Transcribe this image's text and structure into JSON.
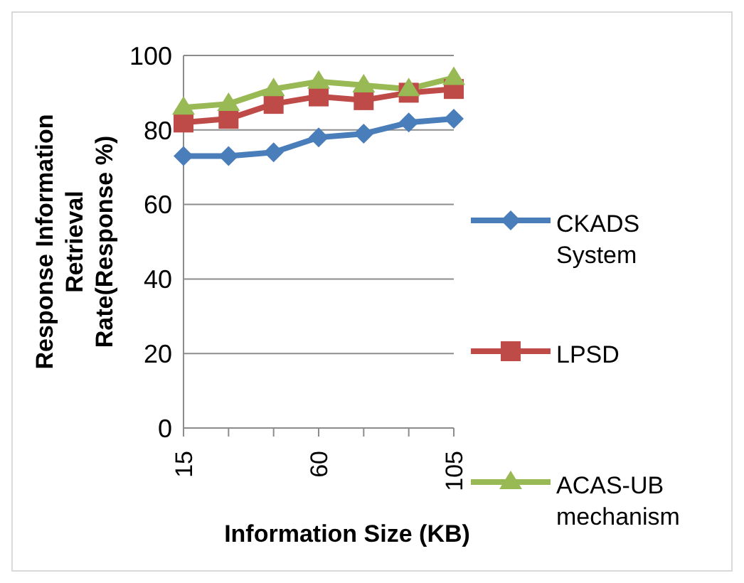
{
  "chart_data": {
    "type": "line",
    "xlabel": "Information Size (KB)",
    "ylabel": "Response Information Retrieval Rate(Response %)",
    "categories": [
      "15",
      null,
      null,
      "60",
      null,
      null,
      "105"
    ],
    "series": [
      {
        "name": "CKADS System",
        "color": "#4a7ebb",
        "marker": "diamond",
        "values": [
          73,
          73,
          74,
          78,
          79,
          82,
          83
        ]
      },
      {
        "name": "LPSD",
        "color": "#be4b48",
        "marker": "square",
        "values": [
          82,
          83,
          87,
          89,
          88,
          90,
          91
        ]
      },
      {
        "name": "ACAS-UB mechanism",
        "color": "#98b954",
        "marker": "triangle",
        "values": [
          86,
          87,
          91,
          93,
          92,
          91,
          94
        ]
      }
    ],
    "ylim": [
      0,
      100
    ],
    "yticks": [
      0,
      20,
      40,
      60,
      80,
      100
    ],
    "grid": "y",
    "legend": "right"
  }
}
